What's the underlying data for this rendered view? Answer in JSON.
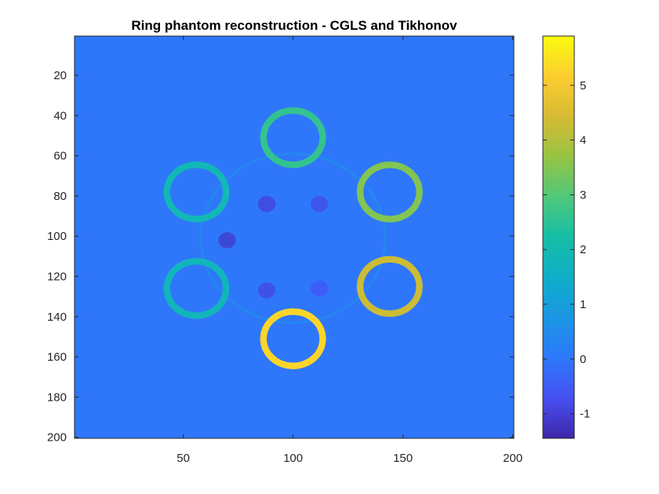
{
  "chart_data": {
    "type": "heatmap",
    "title": "Ring phantom reconstruction - CGLS and Tikhonov",
    "xlabel": "",
    "ylabel": "",
    "image_size": [
      200,
      200
    ],
    "xlim": [
      0.5,
      200.5
    ],
    "ylim": [
      0.5,
      200.5
    ],
    "y_direction": "reversed",
    "x_ticks": [
      50,
      100,
      150,
      200
    ],
    "y_ticks": [
      20,
      40,
      60,
      80,
      100,
      120,
      140,
      160,
      180,
      200
    ],
    "colormap": "parula",
    "colorbar": {
      "limits": [
        -1.45,
        5.9
      ],
      "ticks": [
        -1,
        0,
        1,
        2,
        3,
        4,
        5
      ],
      "location": "right"
    },
    "background_value": 0.0,
    "rings": [
      {
        "center_x": 100,
        "center_y": 51,
        "outer_radius": 15,
        "inner_radius": 12,
        "value": 2.6
      },
      {
        "center_x": 144,
        "center_y": 78,
        "outer_radius": 15,
        "inner_radius": 12,
        "value": 3.5
      },
      {
        "center_x": 144,
        "center_y": 125,
        "outer_radius": 15,
        "inner_radius": 12,
        "value": 4.3
      },
      {
        "center_x": 100,
        "center_y": 151,
        "outer_radius": 15,
        "inner_radius": 12,
        "value": 5.3
      },
      {
        "center_x": 56,
        "center_y": 126,
        "outer_radius": 15,
        "inner_radius": 12,
        "value": 1.8
      },
      {
        "center_x": 56,
        "center_y": 78,
        "outer_radius": 15,
        "inner_radius": 12,
        "value": 1.9
      }
    ],
    "artifacts": [
      {
        "center_x": 100,
        "center_y": 101,
        "radius": 42,
        "value": 0.4,
        "kind": "faint-ring"
      },
      {
        "center_x": 88,
        "center_y": 84,
        "radius": 4,
        "value": -1.0,
        "kind": "dip"
      },
      {
        "center_x": 112,
        "center_y": 84,
        "radius": 4,
        "value": -0.8,
        "kind": "dip"
      },
      {
        "center_x": 70,
        "center_y": 102,
        "radius": 4,
        "value": -1.1,
        "kind": "dip"
      },
      {
        "center_x": 88,
        "center_y": 127,
        "radius": 4,
        "value": -0.9,
        "kind": "dip"
      },
      {
        "center_x": 112,
        "center_y": 126,
        "radius": 4,
        "value": -0.6,
        "kind": "dip"
      }
    ]
  }
}
